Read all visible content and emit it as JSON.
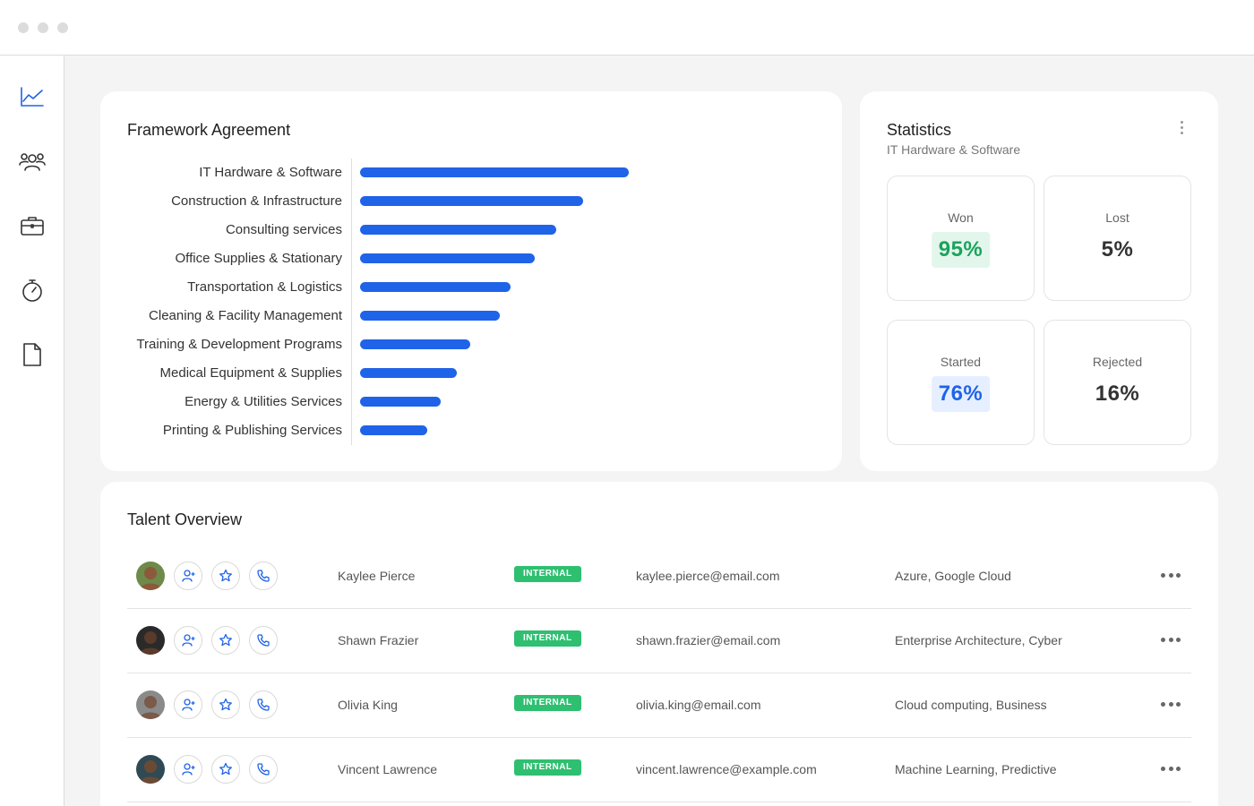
{
  "sidebar": {
    "icons": [
      "chart-line-icon",
      "users-icon",
      "briefcase-icon",
      "stopwatch-icon",
      "document-icon"
    ]
  },
  "framework": {
    "title": "Framework Agreement",
    "items": [
      {
        "label": "IT Hardware & Software",
        "value": 100
      },
      {
        "label": "Construction & Infrastructure",
        "value": 83
      },
      {
        "label": "Consulting services",
        "value": 73
      },
      {
        "label": "Office Supplies & Stationary",
        "value": 65
      },
      {
        "label": "Transportation & Logistics",
        "value": 56
      },
      {
        "label": "Cleaning & Facility Management",
        "value": 52
      },
      {
        "label": "Training & Development Programs",
        "value": 41
      },
      {
        "label": "Medical Equipment & Supplies",
        "value": 36
      },
      {
        "label": "Energy & Utilities Services",
        "value": 30
      },
      {
        "label": "Printing & Publishing Services",
        "value": 25
      }
    ]
  },
  "statistics": {
    "title": "Statistics",
    "subtitle": "IT Hardware & Software",
    "boxes": [
      {
        "label": "Won",
        "value": "95%",
        "color": "#1aa35c",
        "bg": "#e3f6ec"
      },
      {
        "label": "Lost",
        "value": "5%",
        "color": "#333333",
        "bg": "transparent"
      },
      {
        "label": "Started",
        "value": "76%",
        "color": "#1f63e8",
        "bg": "#e6efff"
      },
      {
        "label": "Rejected",
        "value": "16%",
        "color": "#333333",
        "bg": "transparent"
      }
    ]
  },
  "talent": {
    "title": "Talent Overview",
    "rows": [
      {
        "name": "Kaylee Pierce",
        "badge": "INTERNAL",
        "email": "kaylee.pierce@email.com",
        "skills": "Azure, Google Cloud",
        "avatar_skin": "#8a5a3b",
        "avatar_bg": "#6e8a4a"
      },
      {
        "name": "Shawn Frazier",
        "badge": "INTERNAL",
        "email": "shawn.frazier@email.com",
        "skills": "Enterprise Architecture, Cyber",
        "avatar_skin": "#5a3a2a",
        "avatar_bg": "#2a2a2a"
      },
      {
        "name": "Olivia King",
        "badge": "INTERNAL",
        "email": "olivia.king@email.com",
        "skills": "Cloud computing, Business",
        "avatar_skin": "#7a5a48",
        "avatar_bg": "#8a8a8a"
      },
      {
        "name": "Vincent Lawrence",
        "badge": "INTERNAL",
        "email": "vincent.lawrence@example.com",
        "skills": "Machine Learning, Predictive",
        "avatar_skin": "#6b4a35",
        "avatar_bg": "#2f4a55"
      }
    ]
  }
}
